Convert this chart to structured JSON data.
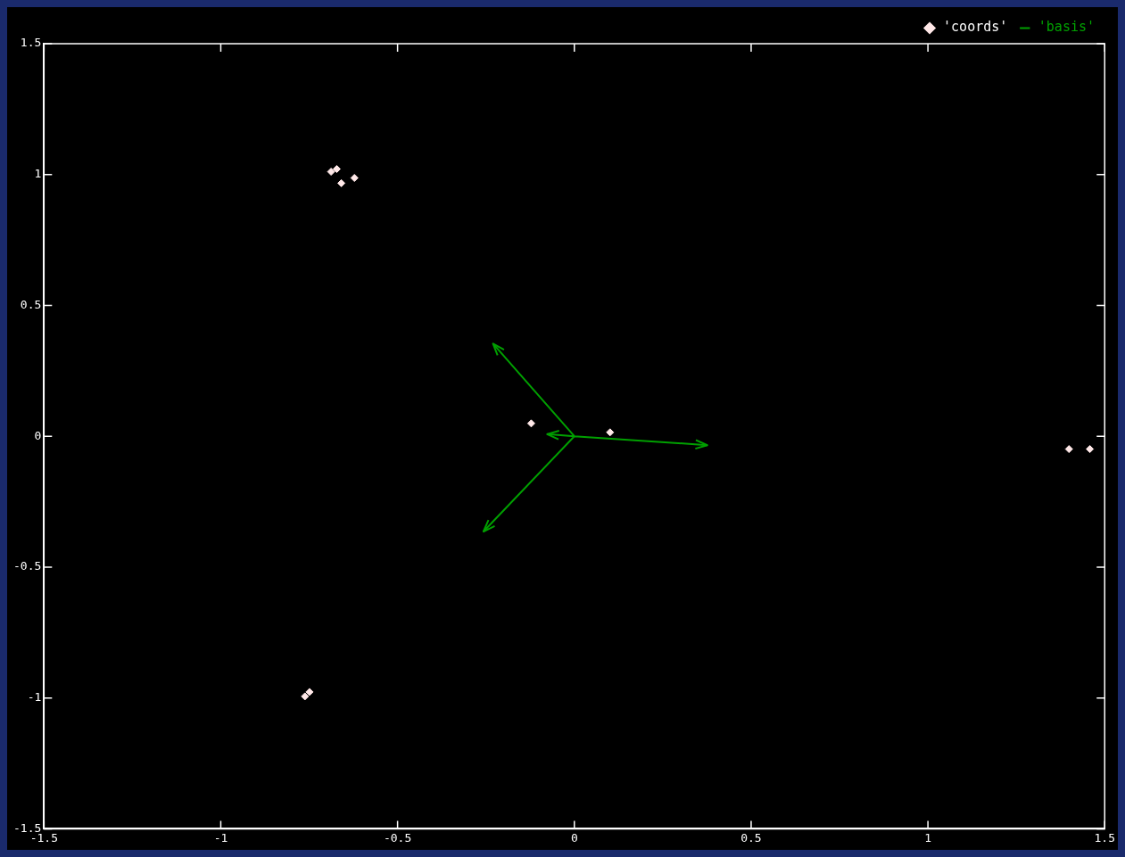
{
  "chart_data": {
    "type": "scatter",
    "xlim": [
      -1.5,
      1.5
    ],
    "ylim": [
      -1.5,
      1.5
    ],
    "xticks": [
      -1.5,
      -1,
      -0.5,
      0,
      0.5,
      1,
      1.5
    ],
    "yticks": [
      -1.5,
      -1,
      -0.5,
      0,
      0.5,
      1,
      1.5
    ],
    "grid": false,
    "legend": "top right",
    "series": [
      {
        "name": "'coords'",
        "type": "scatter",
        "marker": "diamond",
        "color": "#ffe8e8",
        "x": [
          -0.688,
          -0.672,
          -0.659,
          -0.622,
          -0.122,
          0.101,
          1.399,
          1.458,
          -0.762,
          -0.749
        ],
        "values": [
          1.011,
          1.021,
          0.967,
          0.987,
          0.049,
          0.015,
          -0.049,
          -0.049,
          -0.994,
          -0.977
        ]
      },
      {
        "name": "'basis'",
        "type": "line",
        "marker": "none",
        "color": "#00a000",
        "x": [
          0,
          -0.23,
          null,
          0,
          0.376,
          null,
          0,
          -0.257,
          null,
          0,
          -0.077
        ],
        "values": [
          0,
          0.354,
          null,
          0,
          -0.034,
          null,
          0,
          -0.364,
          null,
          0,
          0.008
        ]
      }
    ]
  }
}
